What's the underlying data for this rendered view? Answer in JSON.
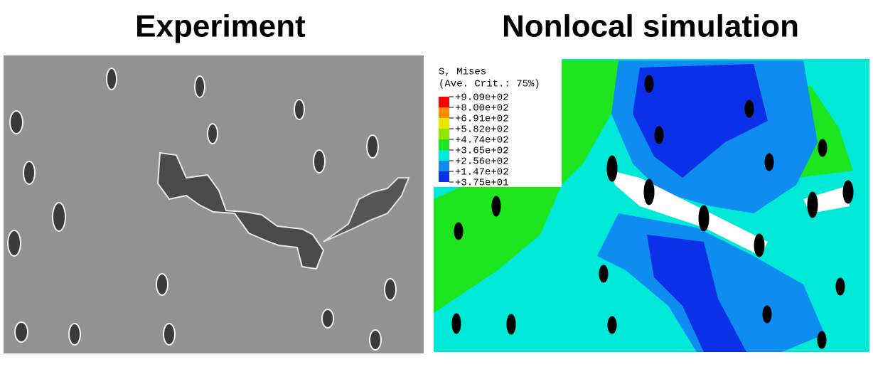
{
  "left_panel": {
    "title": "Experiment"
  },
  "right_panel": {
    "title": "Nonlocal simulation",
    "legend": {
      "title": "S, Mises",
      "subtitle": "(Ave. Crit.: 75%)",
      "labels": [
        "+9.09e+02",
        "+8.00e+02",
        "+6.91e+02",
        "+5.82e+02",
        "+4.74e+02",
        "+3.65e+02",
        "+2.56e+02",
        "+1.47e+02",
        "+3.75e+01"
      ]
    }
  }
}
